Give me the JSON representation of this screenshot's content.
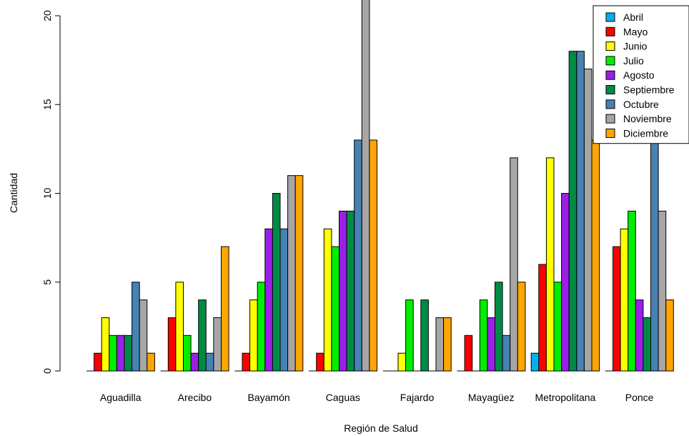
{
  "chart_data": {
    "type": "bar",
    "xlabel": "Región de Salud",
    "ylabel": "Cantidad",
    "ylim": [
      0,
      20
    ],
    "yticks": [
      0,
      5,
      10,
      15,
      20
    ],
    "legend_position": "top-right",
    "grid": false,
    "categories": [
      "Aguadilla",
      "Arecibo",
      "Bayamón",
      "Caguas",
      "Fajardo",
      "Mayagüez",
      "Metropolitana",
      "Ponce"
    ],
    "series": [
      {
        "name": "Abril",
        "color": "#00b0f0",
        "values": [
          0,
          0,
          0,
          0,
          0,
          0,
          1,
          0
        ]
      },
      {
        "name": "Mayo",
        "color": "#ff0000",
        "values": [
          1,
          3,
          1,
          1,
          0,
          2,
          6,
          7
        ]
      },
      {
        "name": "Junio",
        "color": "#ffff00",
        "values": [
          3,
          5,
          4,
          8,
          1,
          0,
          12,
          8
        ]
      },
      {
        "name": "Julio",
        "color": "#00ee00",
        "values": [
          2,
          2,
          5,
          7,
          4,
          4,
          5,
          9
        ]
      },
      {
        "name": "Agosto",
        "color": "#9b1fe8",
        "values": [
          2,
          1,
          8,
          9,
          0,
          3,
          10,
          4
        ]
      },
      {
        "name": "Septiembre",
        "color": "#008b45",
        "values": [
          2,
          4,
          10,
          9,
          4,
          5,
          18,
          3
        ]
      },
      {
        "name": "Octubre",
        "color": "#4682b4",
        "values": [
          5,
          1,
          8,
          13,
          0,
          2,
          18,
          13
        ]
      },
      {
        "name": "Noviembre",
        "color": "#a6a6a6",
        "values": [
          4,
          3,
          11,
          21,
          3,
          12,
          17,
          9
        ]
      },
      {
        "name": "Diciembre",
        "color": "#ffa500",
        "values": [
          1,
          7,
          11,
          13,
          3,
          5,
          13,
          4
        ]
      }
    ]
  }
}
